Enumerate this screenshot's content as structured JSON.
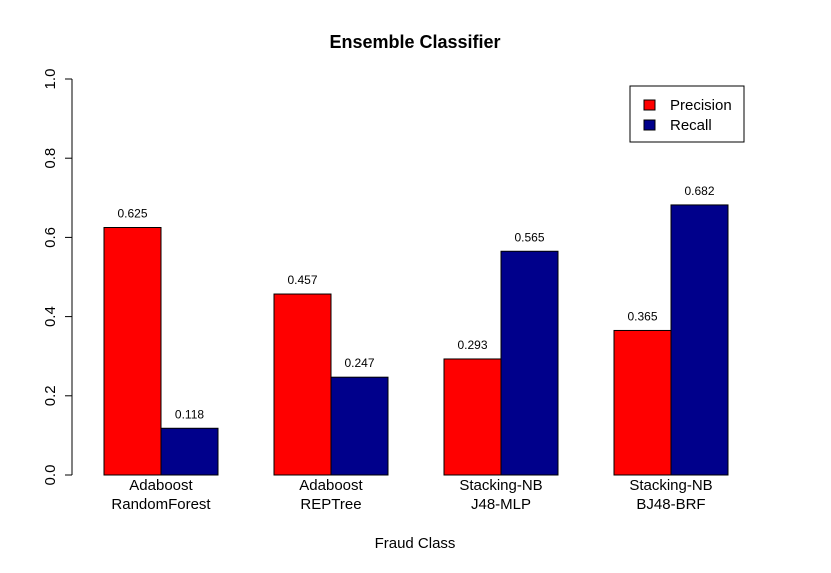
{
  "chart_data": {
    "type": "bar",
    "title": "Ensemble Classifier",
    "xlabel": "Fraud Class",
    "ylabel": "",
    "ylim": [
      0,
      1
    ],
    "yticks": [
      "0.0",
      "0.2",
      "0.4",
      "0.6",
      "0.8",
      "1.0"
    ],
    "categories": [
      [
        "Adaboost",
        "RandomForest"
      ],
      [
        "Adaboost",
        "REPTree"
      ],
      [
        "Stacking-NB",
        "J48-MLP"
      ],
      [
        "Stacking-NB",
        "BJ48-BRF"
      ]
    ],
    "series": [
      {
        "name": "Precision",
        "color": "#ff0000",
        "values": [
          0.625,
          0.457,
          0.293,
          0.365
        ],
        "labels": [
          "0.625",
          "0.457",
          "0.293",
          "0.365"
        ]
      },
      {
        "name": "Recall",
        "color": "#00008b",
        "values": [
          0.118,
          0.247,
          0.565,
          0.682
        ],
        "labels": [
          "0.118",
          "0.247",
          "0.565",
          "0.682"
        ]
      }
    ],
    "legend_position": "top-right",
    "grid": false
  }
}
